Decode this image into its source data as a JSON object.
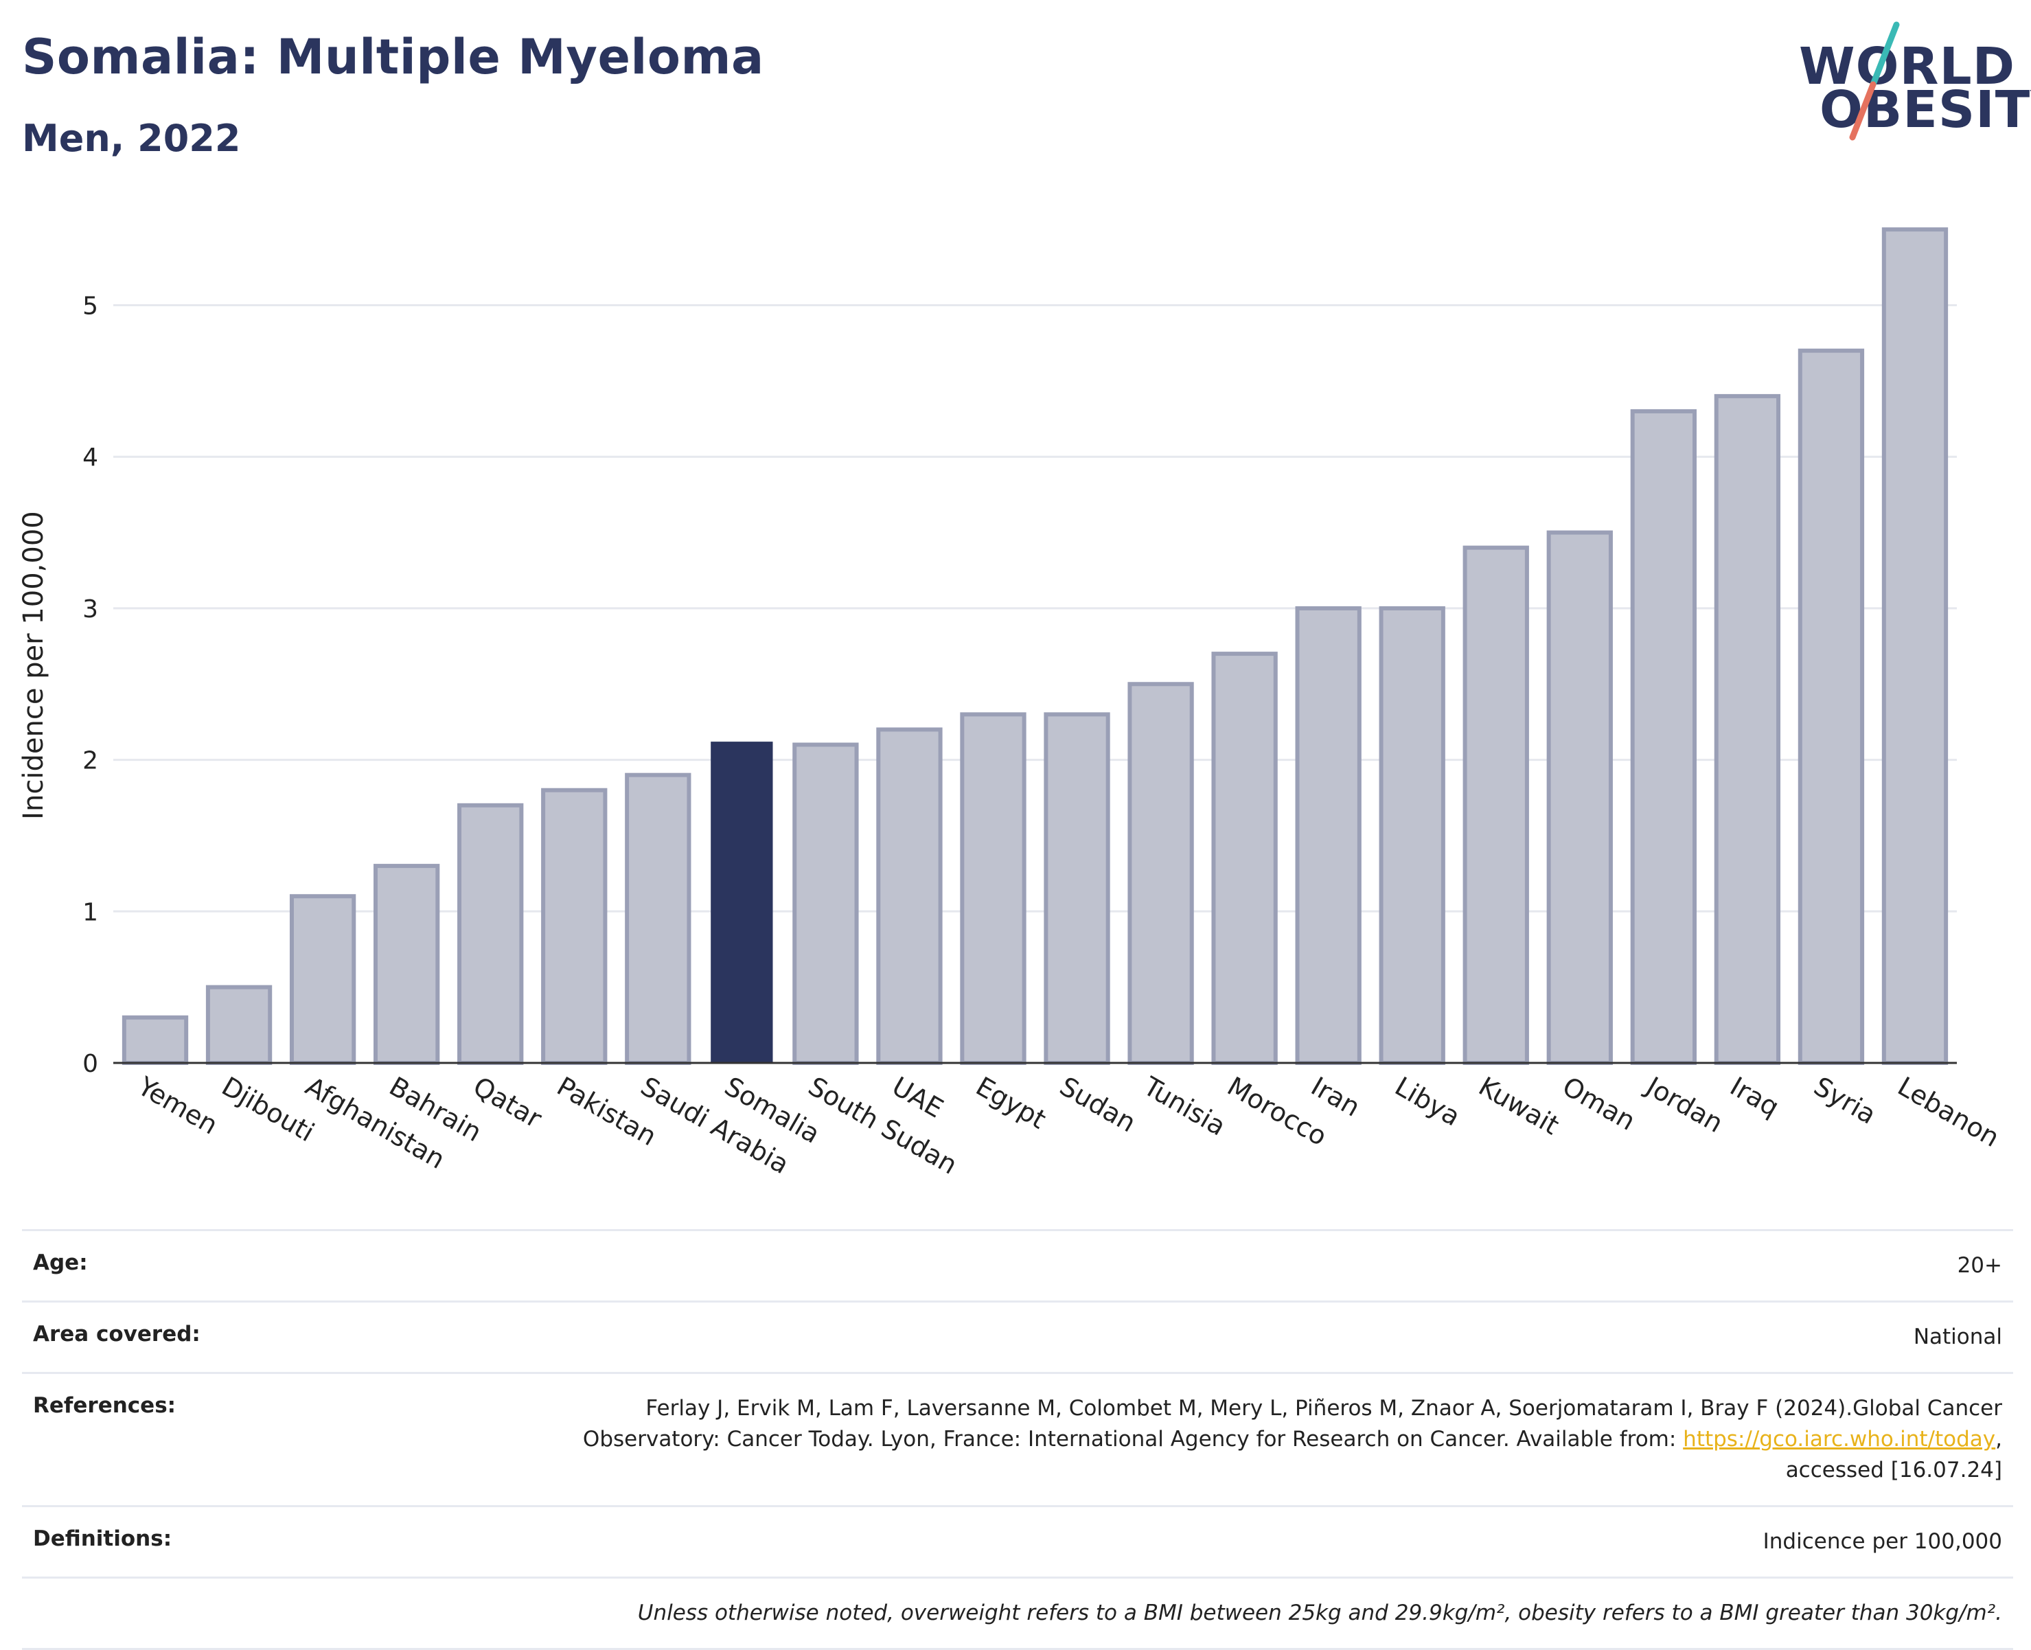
{
  "header": {
    "title": "Somalia: Multiple Myeloma",
    "subtitle": "Men, 2022"
  },
  "logo": {
    "line1": "WORLD",
    "line2": "OBESITY",
    "accent_colors": [
      "#3ab9b5",
      "#e5725f"
    ]
  },
  "chart_data": {
    "type": "bar",
    "title": "Somalia: Multiple Myeloma",
    "subtitle": "Men, 2022",
    "xlabel": "",
    "ylabel": "Incidence per 100,000",
    "categories": [
      "Yemen",
      "Djibouti",
      "Afghanistan",
      "Bahrain",
      "Qatar",
      "Pakistan",
      "Saudi Arabia",
      "Somalia",
      "South Sudan",
      "UAE",
      "Egypt",
      "Sudan",
      "Tunisia",
      "Morocco",
      "Iran",
      "Libya",
      "Kuwait",
      "Oman",
      "Jordan",
      "Iraq",
      "Syria",
      "Lebanon"
    ],
    "values": [
      0.3,
      0.5,
      1.1,
      1.3,
      1.7,
      1.8,
      1.9,
      2.12,
      2.1,
      2.2,
      2.3,
      2.3,
      2.5,
      2.7,
      3.0,
      3.0,
      3.4,
      3.5,
      4.3,
      4.4,
      4.7,
      5.5
    ],
    "highlight": "Somalia",
    "ylim": [
      0,
      5.7
    ],
    "yticks": [
      0,
      1,
      2,
      3,
      4,
      5
    ],
    "grid": true,
    "colors": {
      "highlight": "#2b355e",
      "bar_fill": "#bfc2cf",
      "bar_stroke": "#9a9fb6",
      "grid": "#e6e8ee",
      "axis": "#333333"
    }
  },
  "metadata": {
    "age": {
      "label": "Age:",
      "value": "20+"
    },
    "area": {
      "label": "Area covered:",
      "value": "National"
    },
    "references": {
      "label": "References:",
      "line1": "Ferlay J, Ervik M, Lam F, Laversanne M, Colombet M, Mery L, Piñeros M, Znaor A, Soerjomataram I, Bray F (2024).Global Cancer",
      "line2": "Observatory: Cancer Today. Lyon, France: International Agency for Research on Cancer. Available from: ",
      "link": "https://gco.iarc.who.int/today",
      "line2_end": ",",
      "line3": "accessed [16.07.24]"
    },
    "definitions": {
      "label": "Definitions:",
      "value": "Indicence per 100,000"
    },
    "note": "Unless otherwise noted, overweight refers to a BMI between 25kg and 29.9kg/m², obesity refers to a BMI greater than 30kg/m²."
  }
}
